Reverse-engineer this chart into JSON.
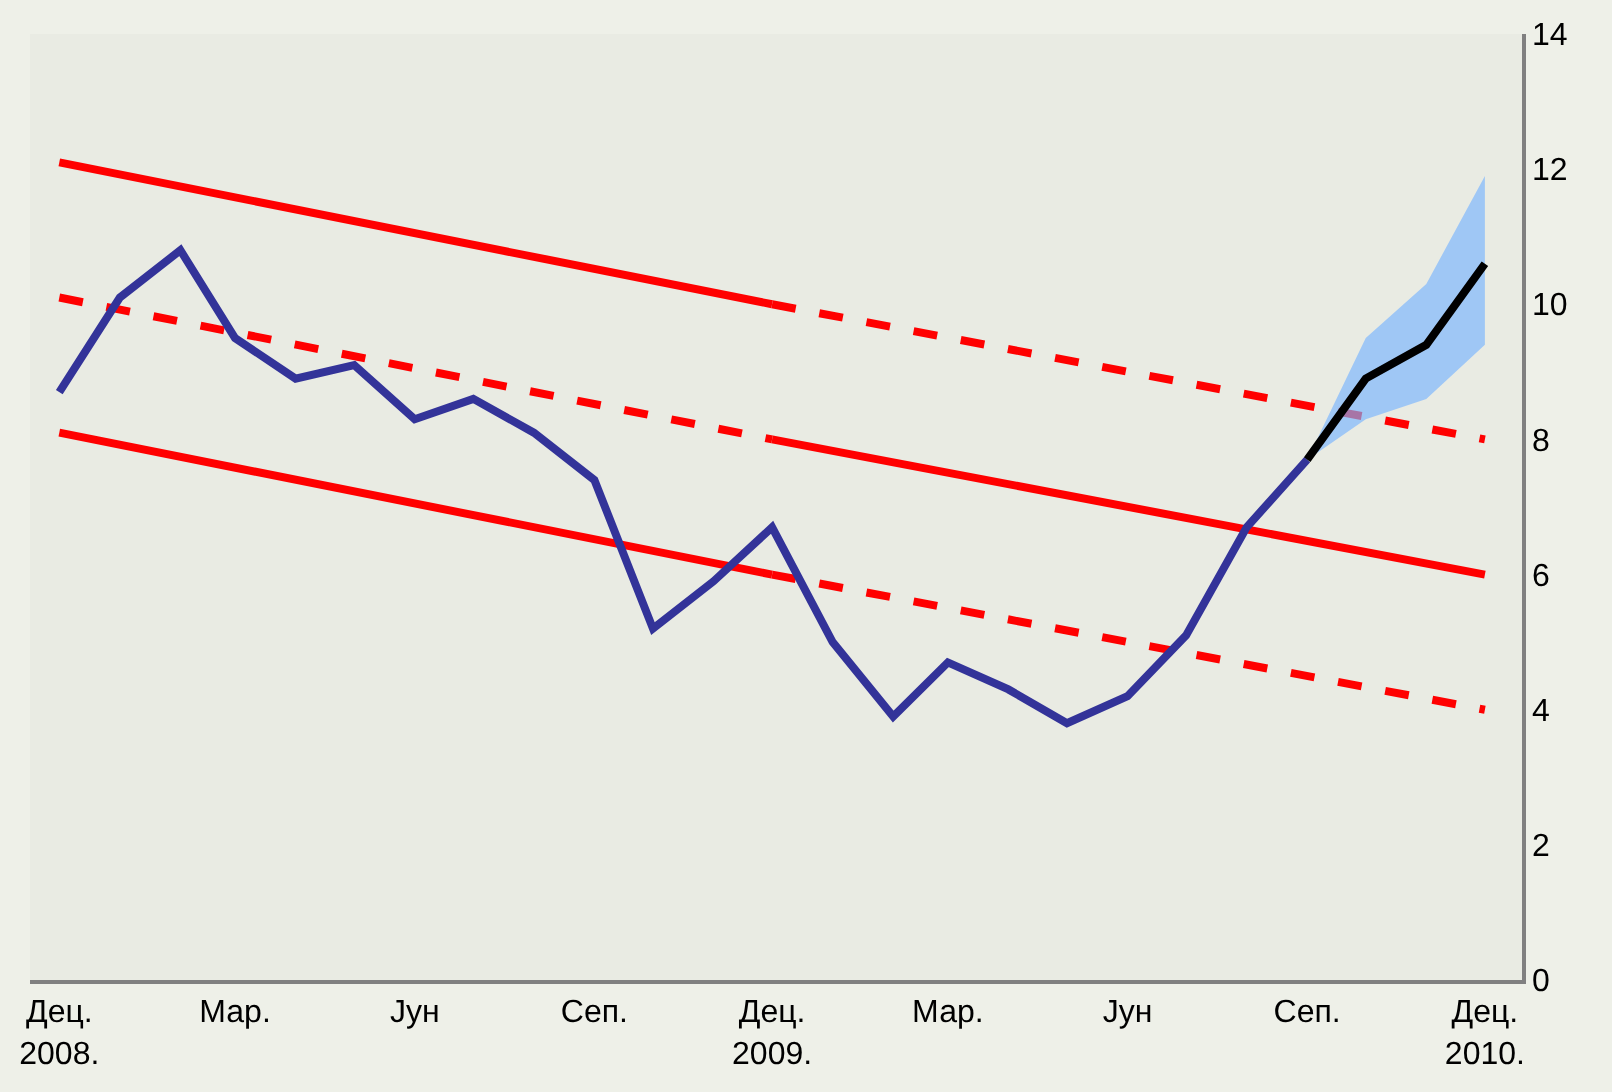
{
  "chart_data": {
    "type": "line",
    "xlim": [
      "2008-11-16",
      "2010-12-20"
    ],
    "xticks": [
      {
        "value": "2008-12",
        "label": "Дец.\n2008."
      },
      {
        "value": "2009-03",
        "label": "Мар."
      },
      {
        "value": "2009-06",
        "label": "Јун"
      },
      {
        "value": "2009-09",
        "label": "Сеп."
      },
      {
        "value": "2009-12",
        "label": "Дец.\n2009."
      },
      {
        "value": "2010-03",
        "label": "Мар."
      },
      {
        "value": "2010-06",
        "label": "Јун"
      },
      {
        "value": "2010-09",
        "label": "Сеп."
      },
      {
        "value": "2010-12",
        "label": "Дец.\n2010."
      }
    ],
    "ylim": [
      0,
      14
    ],
    "yticks": [
      0,
      2,
      4,
      6,
      8,
      10,
      12,
      14
    ],
    "series": [
      {
        "color": "#ff0000",
        "line_style": "solid",
        "x": [
          "2008-12",
          "2009-12"
        ],
        "values": [
          12.1,
          10.0
        ]
      },
      {
        "color": "#ff0000",
        "line_style": "dashed",
        "x": [
          "2009-12",
          "2010-12"
        ],
        "values": [
          10.0,
          8.0
        ]
      },
      {
        "color": "#ff0000",
        "line_style": "dashed",
        "x": [
          "2008-12",
          "2009-12"
        ],
        "values": [
          10.1,
          8.0
        ]
      },
      {
        "color": "#ff0000",
        "line_style": "solid",
        "x": [
          "2009-12",
          "2010-12"
        ],
        "values": [
          8.0,
          6.0
        ]
      },
      {
        "color": "#ff0000",
        "line_style": "solid",
        "x": [
          "2008-12",
          "2009-12"
        ],
        "values": [
          8.1,
          6.0
        ]
      },
      {
        "color": "#ff0000",
        "line_style": "dashed",
        "x": [
          "2009-12",
          "2010-12"
        ],
        "values": [
          6.0,
          4.0
        ]
      },
      {
        "color": "#333399",
        "line_style": "solid",
        "x": [
          "2008-12",
          "2009-01",
          "2009-02",
          "2009-03",
          "2009-04",
          "2009-05",
          "2009-06",
          "2009-07",
          "2009-08",
          "2009-09",
          "2009-10",
          "2009-11",
          "2009-12",
          "2010-01",
          "2010-02",
          "2010-03",
          "2010-04",
          "2010-05",
          "2010-06",
          "2010-07",
          "2010-08",
          "2010-09"
        ],
        "values": [
          8.7,
          10.1,
          10.8,
          9.5,
          8.9,
          9.1,
          8.3,
          8.6,
          8.1,
          7.4,
          5.2,
          5.9,
          6.7,
          5.0,
          3.9,
          4.7,
          4.3,
          3.8,
          4.2,
          5.1,
          6.7,
          7.7
        ]
      },
      {
        "color": "#000000",
        "line_style": "solid",
        "x": [
          "2010-09",
          "2010-10",
          "2010-11",
          "2010-12"
        ],
        "values": [
          7.7,
          8.9,
          9.4,
          10.6
        ],
        "lower": [
          7.7,
          8.3,
          8.6,
          9.4
        ],
        "upper": [
          7.7,
          9.5,
          10.3,
          11.9
        ]
      }
    ]
  }
}
